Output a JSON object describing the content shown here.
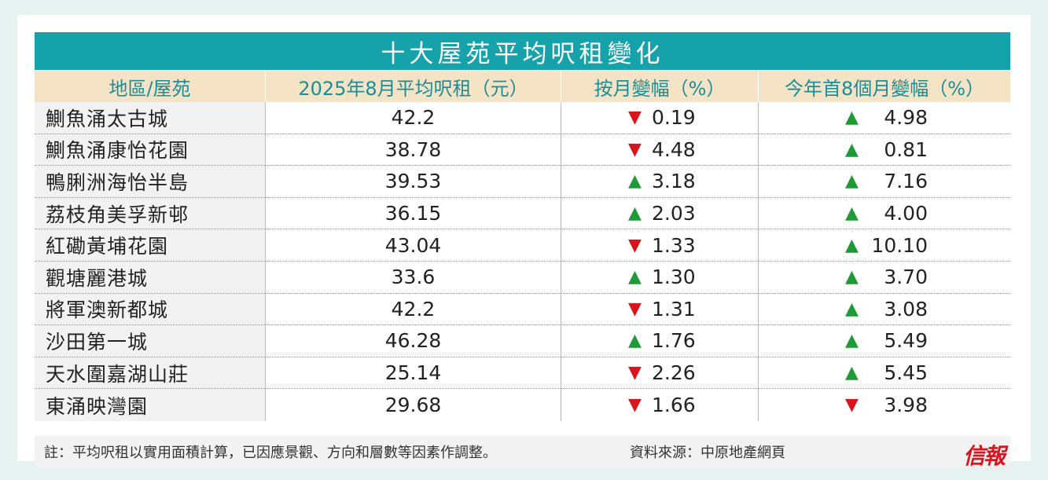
{
  "title": "十大屋苑平均呎租變化",
  "columns": [
    "地區/屋苑",
    "2025年8月平均呎租（元）",
    "按月變幅（%）",
    "今年首8個月變幅（%）"
  ],
  "chart_data": {
    "type": "table",
    "rows": [
      {
        "estate": "鰂魚涌太古城",
        "rent": "42.2",
        "mom_dir": "down",
        "mom": "0.19",
        "ytd_dir": "up",
        "ytd": "4.98"
      },
      {
        "estate": "鰂魚涌康怡花園",
        "rent": "38.78",
        "mom_dir": "down",
        "mom": "4.48",
        "ytd_dir": "up",
        "ytd": "0.81"
      },
      {
        "estate": "鴨脷洲海怡半島",
        "rent": "39.53",
        "mom_dir": "up",
        "mom": "3.18",
        "ytd_dir": "up",
        "ytd": "7.16"
      },
      {
        "estate": "荔枝角美孚新邨",
        "rent": "36.15",
        "mom_dir": "up",
        "mom": "2.03",
        "ytd_dir": "up",
        "ytd": "4.00"
      },
      {
        "estate": "紅磡黃埔花園",
        "rent": "43.04",
        "mom_dir": "down",
        "mom": "1.33",
        "ytd_dir": "up",
        "ytd": "10.10"
      },
      {
        "estate": "觀塘麗港城",
        "rent": "33.6",
        "mom_dir": "up",
        "mom": "1.30",
        "ytd_dir": "up",
        "ytd": "3.70"
      },
      {
        "estate": "將軍澳新都城",
        "rent": "42.2",
        "mom_dir": "down",
        "mom": "1.31",
        "ytd_dir": "up",
        "ytd": "3.08"
      },
      {
        "estate": "沙田第一城",
        "rent": "46.28",
        "mom_dir": "up",
        "mom": "1.76",
        "ytd_dir": "up",
        "ytd": "5.49"
      },
      {
        "estate": "天水圍嘉湖山莊",
        "rent": "25.14",
        "mom_dir": "down",
        "mom": "2.26",
        "ytd_dir": "up",
        "ytd": "5.45"
      },
      {
        "estate": "東涌映灣園",
        "rent": "29.68",
        "mom_dir": "down",
        "mom": "1.66",
        "ytd_dir": "down",
        "ytd": "3.98"
      }
    ]
  },
  "colors": {
    "up": "#1e9b36",
    "down": "#d8141c",
    "header_bar": "#16a2ab",
    "header_row": "#f5e3c6"
  },
  "footer": {
    "note": "註：平均呎租以實用面積計算，已因應景觀、方向和層數等因素作調整。",
    "source": "資料來源：中原地產網頁",
    "logo": "信報"
  }
}
